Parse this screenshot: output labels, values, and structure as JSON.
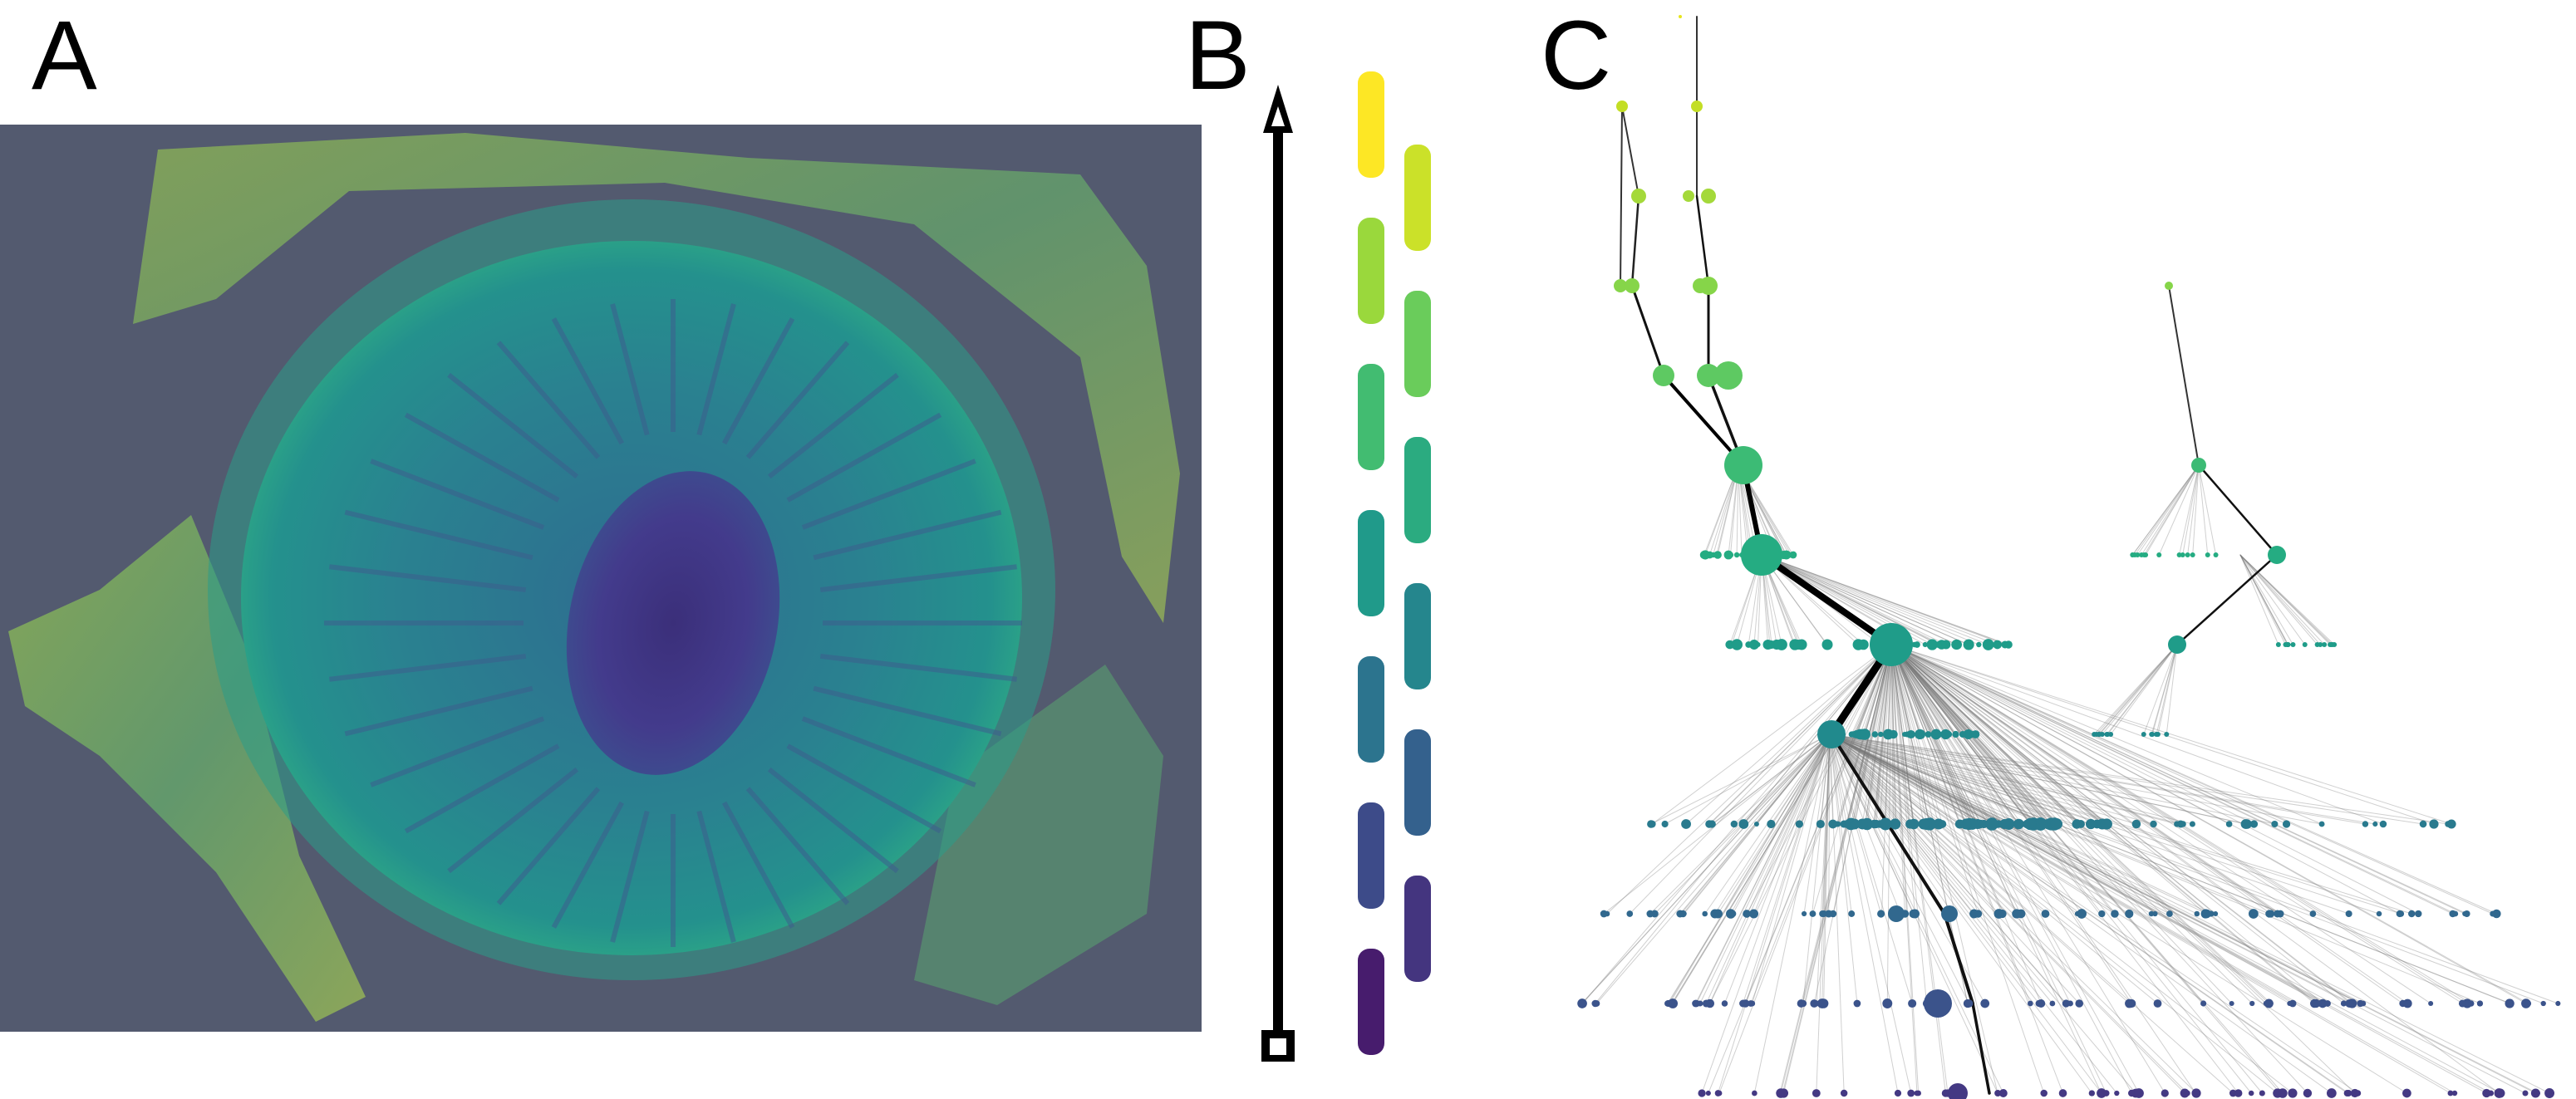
{
  "panels": {
    "a": {
      "label": "A"
    },
    "b": {
      "label": "B"
    },
    "c": {
      "label": "C"
    }
  },
  "colors": {
    "background_panel_a": "#535a6f",
    "viridis": [
      "#fde725",
      "#b5de2b",
      "#6ece58",
      "#35b779",
      "#1f9e89",
      "#26828e",
      "#31688e",
      "#3e4989",
      "#482878",
      "#440154"
    ],
    "arrow": "#000000"
  },
  "chart_data": {
    "type": "tree",
    "levels": 13,
    "level_colors": [
      "#e6e51c",
      "#c3de25",
      "#a4d93a",
      "#86d549",
      "#5ec962",
      "#3cbb75",
      "#25ac82",
      "#1f9c89",
      "#218a8d",
      "#297a8e",
      "#31688e",
      "#3b538b",
      "#443983",
      "#482173"
    ]
  }
}
